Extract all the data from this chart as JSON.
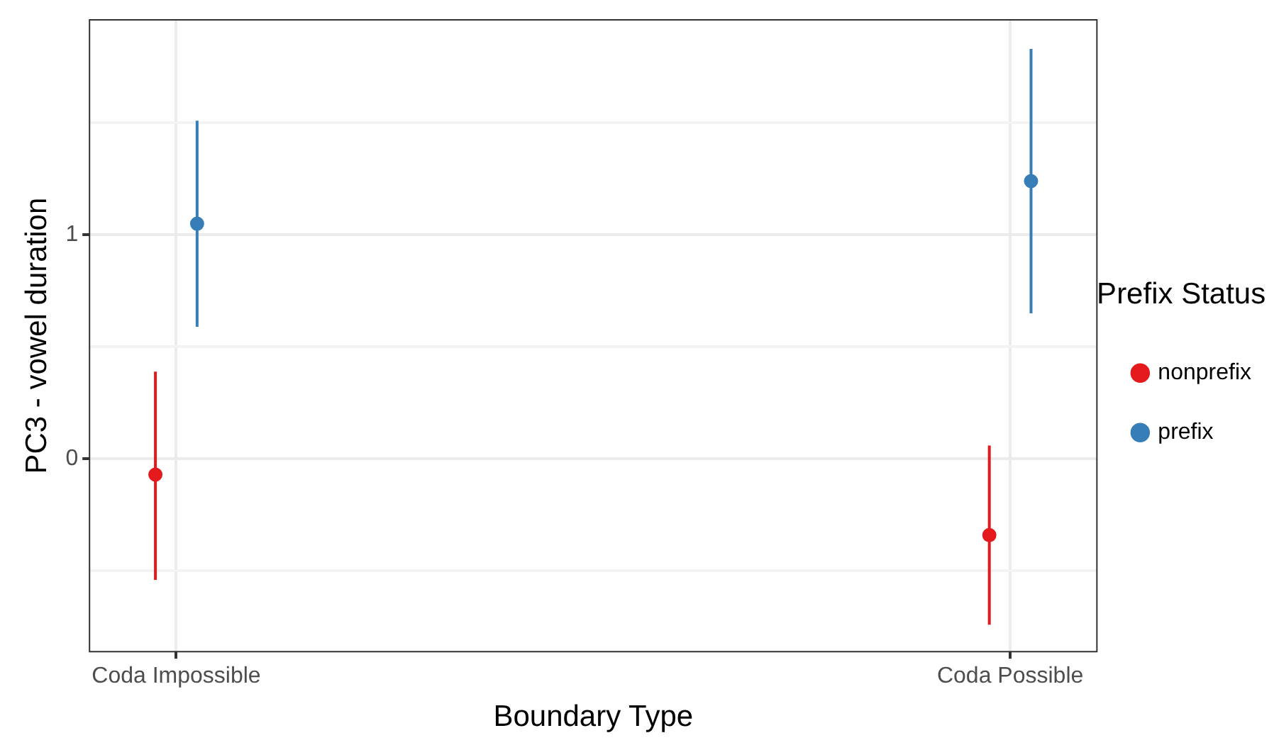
{
  "chart_data": {
    "type": "scatter",
    "xlabel": "Boundary Type",
    "ylabel": "PC3 - vowel duration",
    "legend_title": "Prefix Status",
    "categories": [
      "Coda Impossible",
      "Coda Possible"
    ],
    "series": [
      {
        "name": "nonprefix",
        "color": "#e41a1c",
        "values": [
          -0.07,
          -0.34
        ],
        "errors": [
          [
            -0.54,
            0.39
          ],
          [
            -0.74,
            0.06
          ]
        ]
      },
      {
        "name": "prefix",
        "color": "#377eb8",
        "values": [
          1.05,
          1.24
        ],
        "errors": [
          [
            0.59,
            1.51
          ],
          [
            0.65,
            1.83
          ]
        ]
      }
    ],
    "ylim": [
      -0.86,
      1.96
    ],
    "yticks": [
      {
        "value": -0.5,
        "label": null
      },
      0,
      {
        "value": 0.5,
        "label": null
      },
      1,
      {
        "value": 1.5,
        "label": null
      }
    ],
    "grid": true,
    "legend": "right",
    "marker": "circle"
  }
}
